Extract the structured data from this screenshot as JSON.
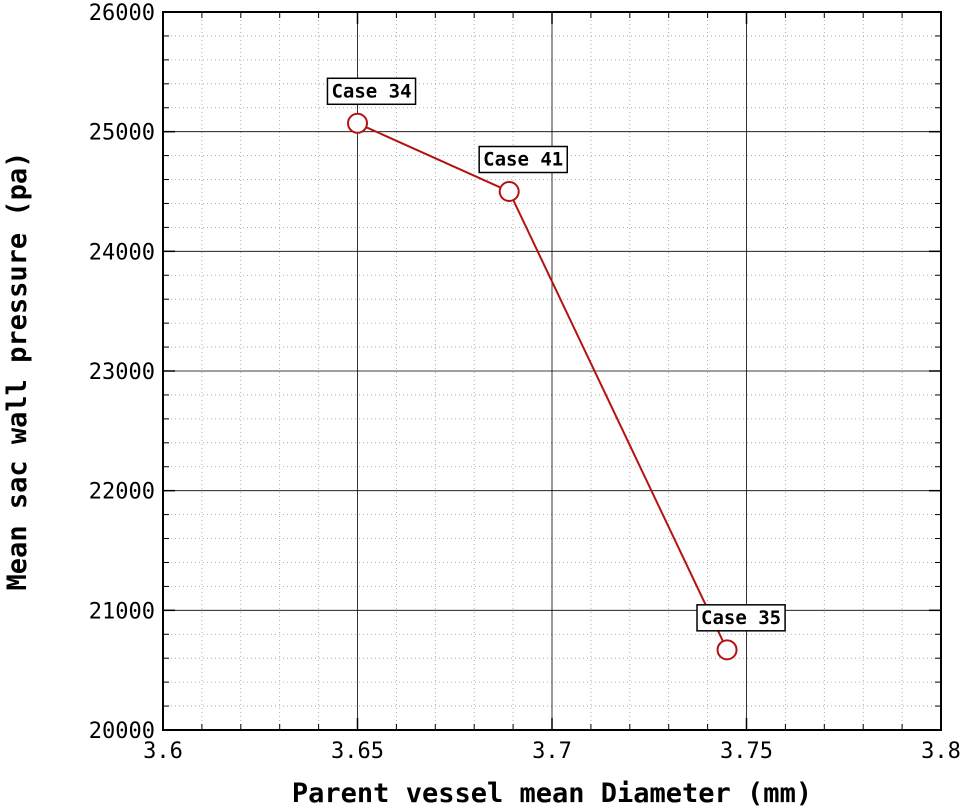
{
  "chart_data": {
    "type": "line",
    "title": "",
    "xlabel": "Parent vessel mean Diameter (mm)",
    "ylabel": "Mean sac wall pressure (pa)",
    "xlim": [
      3.6,
      3.8
    ],
    "ylim": [
      20000,
      26000
    ],
    "x_ticks": [
      "3.6",
      "3.65",
      "3.7",
      "3.75",
      "3.8"
    ],
    "y_ticks": [
      "20000",
      "21000",
      "22000",
      "23000",
      "24000",
      "25000",
      "26000"
    ],
    "grid": true,
    "line_color": "#b31313",
    "series": [
      {
        "x": [
          3.65,
          3.689,
          3.745
        ],
        "y": [
          25070,
          24500,
          20670
        ],
        "labels": [
          "Case 34",
          "Case 41",
          "Case 35"
        ]
      }
    ]
  }
}
